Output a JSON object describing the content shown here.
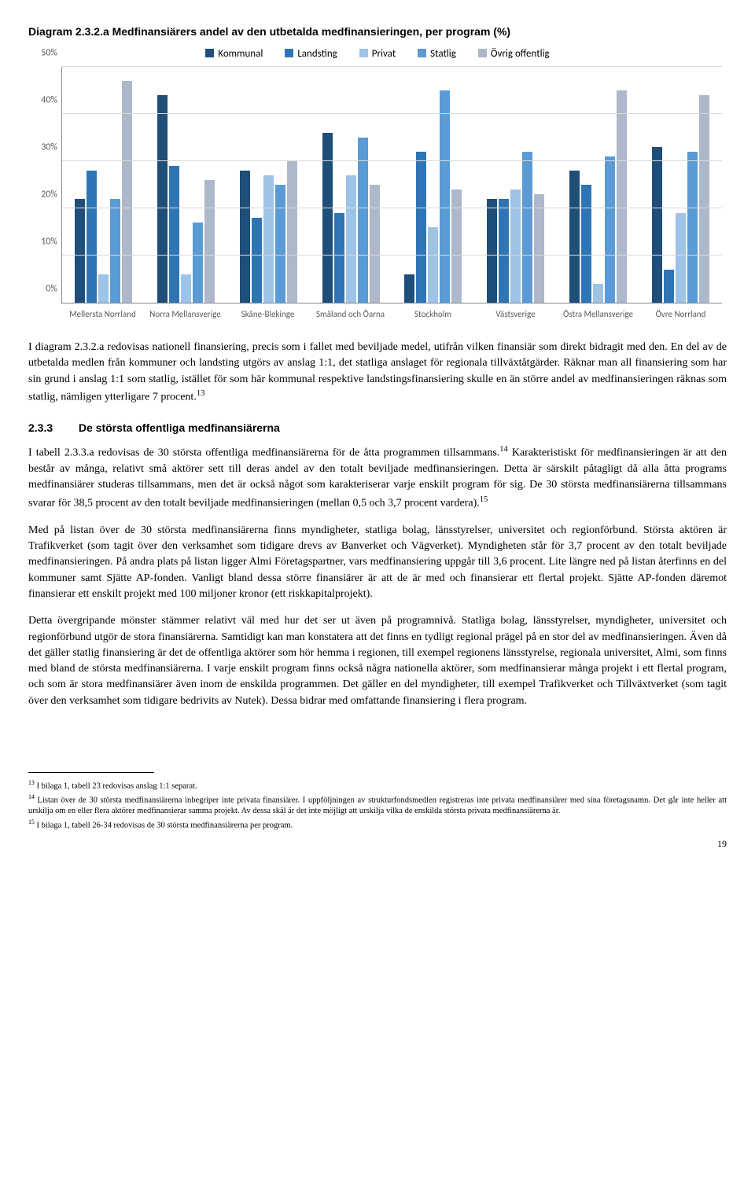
{
  "chart": {
    "title": "Diagram 2.3.2.a Medfinansiärers andel av den utbetalda medfinansieringen, per program (%)",
    "type": "bar",
    "ymax": 50,
    "ytick_step": 10,
    "series": [
      {
        "label": "Kommunal",
        "color": "#1f4e79"
      },
      {
        "label": "Landsting",
        "color": "#2e75b6"
      },
      {
        "label": "Privat",
        "color": "#9dc3e6"
      },
      {
        "label": "Statlig",
        "color": "#5b9bd5"
      },
      {
        "label": "Övrig offentlig",
        "color": "#adb9ca"
      }
    ],
    "categories": [
      "Mellersta Norrland",
      "Norra Mellansverige",
      "Skåne-Blekinge",
      "Småland och Öarna",
      "Stockholm",
      "Västsverige",
      "Östra Mellansverige",
      "Övre Norrland"
    ],
    "values": [
      [
        22,
        28,
        6,
        22,
        47
      ],
      [
        44,
        29,
        6,
        17,
        26
      ],
      [
        28,
        18,
        27,
        25,
        30
      ],
      [
        36,
        19,
        27,
        35,
        25
      ],
      [
        6,
        32,
        16,
        45,
        24
      ],
      [
        22,
        22,
        24,
        32,
        23
      ],
      [
        28,
        25,
        4,
        31,
        45
      ],
      [
        33,
        7,
        19,
        32,
        44
      ]
    ],
    "grid_color": "#d9d9d9",
    "axis_color": "#888888",
    "label_color": "#595959"
  },
  "paragraphs": {
    "p1": "I diagram 2.3.2.a redovisas nationell finansiering, precis som i fallet med beviljade medel, utifrån vilken finansiär som direkt bidragit med den. En del av de utbetalda medlen från kommuner och landsting utgörs av anslag 1:1, det statliga anslaget för regionala tillväxtåtgärder. Räknar man all finansiering som har sin grund i anslag 1:1 som statlig, istället för som här kommunal respektive landstingsfinansiering skulle en än större andel av medfinansieringen räknas som statlig, nämligen ytterligare 7 procent.",
    "p1_sup": "13",
    "section_num": "2.3.3",
    "section_title": "De största offentliga medfinansiärerna",
    "p2a": "I tabell 2.3.3.a redovisas de 30 största offentliga medfinansiärerna för de åtta programmen tillsammans.",
    "p2_sup": "14",
    "p2b": " Karakteristiskt för medfinansieringen är att den består av många, relativt små aktörer sett till deras andel av den totalt beviljade medfinansieringen. Detta är särskilt påtagligt då alla åtta programs medfinansiärer studeras tillsammans, men det är också något som karakteriserar varje enskilt program för sig. De 30 största medfinansiärerna tillsammans svarar för 38,5 procent av den totalt beviljade medfinansieringen (mellan 0,5 och 3,7 procent vardera).",
    "p2_sup2": "15",
    "p3": "Med på listan över de 30 största medfinansiärerna finns myndigheter, statliga bolag, länsstyrelser, universitet och regionförbund. Största aktören är Trafikverket (som tagit över den verksamhet som tidigare drevs av Banverket och Vägverket). Myndigheten står för 3,7 procent av den totalt beviljade medfinansieringen. På andra plats på listan ligger Almi Företagspartner, vars medfinansiering uppgår till 3,6 procent. Lite längre ned på listan återfinns en del kommuner samt Sjätte AP-fonden. Vanligt bland dessa större finansiärer är att de är med och finansierar ett flertal projekt. Sjätte AP-fonden däremot finansierar ett enskilt projekt med 100 miljoner kronor (ett riskkapitalprojekt).",
    "p4": "Detta övergripande mönster stämmer relativt väl med hur det ser ut även på programnivå. Statliga bolag, länsstyrelser, myndigheter, universitet och regionförbund utgör de stora finansiärerna. Samtidigt kan man konstatera att det finns en tydligt regional prägel på en stor del av medfinansieringen. Även då det gäller statlig finansiering är det de offentliga aktörer som hör hemma i regionen, till exempel regionens länsstyrelse, regionala universitet, Almi, som finns med bland de största medfinansiärerna. I varje enskilt program finns också några nationella aktörer, som medfinansierar många projekt i ett flertal program, och som är stora medfinansiärer även inom de enskilda programmen. Det gäller en del myndigheter, till exempel Trafikverket och Tillväxtverket (som tagit över den verksamhet som tidigare bedrivits av Nutek). Dessa bidrar med omfattande finansiering i flera program."
  },
  "footnotes": {
    "f13": "I bilaga 1, tabell 23 redovisas anslag 1:1 separat.",
    "f14": "Listan över de 30 största medfinansiärerna inbegriper inte privata finansiärer. I uppföljningen av strukturfondsmedlen registreras inte privata medfinansiärer med sina företagsnamn. Det går inte heller att urskilja om en eller flera aktörer medfinansierar samma projekt. Av dessa skäl är det inte möjligt att urskilja vilka de enskilda största privata medfinansiärerna är.",
    "f15": "I bilaga 1, tabell 26-34 redovisas de 30 största medfinansiärerna per program."
  },
  "pagenum": "19"
}
